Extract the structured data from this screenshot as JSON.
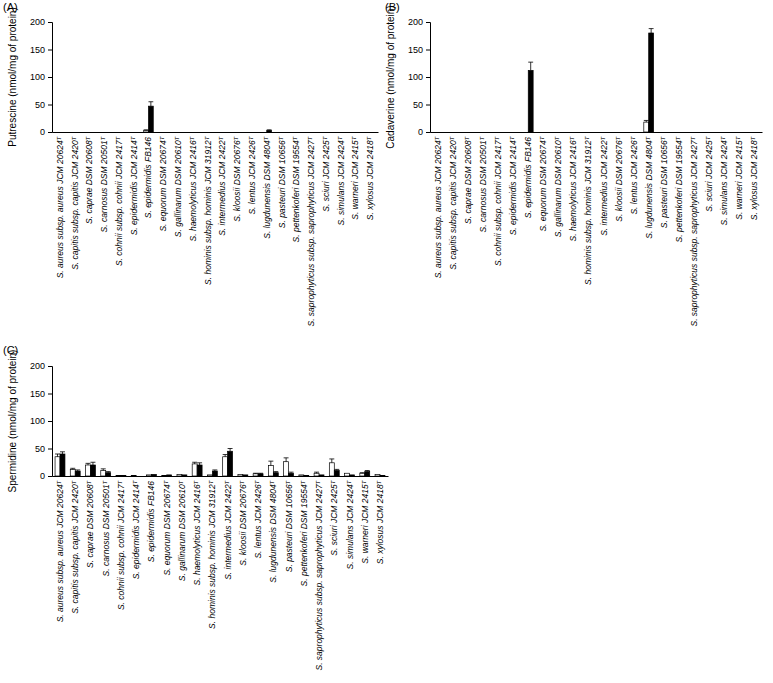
{
  "chart_data": [
    {
      "type": "bar",
      "title": "(A)",
      "y_label": "Putrescine (nmol/mg of protein)",
      "categories": [
        "S. aureus subsp. aureus JCM 20624ᵀ",
        "S. capitis subsp. capitis JCM 2420ᵀ",
        "S. caprae DSM 20608ᵀ",
        "S. carnosus DSM 20501ᵀ",
        "S. cohnii subsp. cohnii JCM 2417ᵀ",
        "S. epidermidis JCM 2414ᵀ",
        "S. epidermidis FB146",
        "S. equorum DSM 20674ᵀ",
        "S. gallinarum DSM 20610ᵀ",
        "S. haemolyticus JCM 2416ᵀ",
        "S. hominis subsp. hominis JCM 31912ᵀ",
        "S. intermedius JCM 2422ᵀ",
        "S. kloosii DSM 20676ᵀ",
        "S. lentus JCM 2426ᵀ",
        "S. lugdunensis DSM 4804ᵀ",
        "S. pasteuri DSM 10656ᵀ",
        "S. pettenkoferi DSM 19554ᵀ",
        "S. saprophyticus subsp. saprophyticus JCM 2427ᵀ",
        "S. sciuri JCM 2425ᵀ",
        "S. simulans JCM 2424ᵀ",
        "S. warneri JCM 2415ᵀ",
        "S. xylosus JCM 2418ᵀ"
      ],
      "series": [
        {
          "color": "#ffffff",
          "values": [
            0,
            0,
            0,
            0,
            0,
            0,
            3,
            0,
            0,
            0,
            0,
            0,
            0,
            0,
            0,
            0,
            0,
            0,
            0,
            0,
            0,
            0
          ],
          "errors": [
            0,
            0,
            0,
            0,
            0,
            0,
            1,
            0,
            0,
            0,
            0,
            0,
            0,
            0,
            0,
            0,
            0,
            0,
            0,
            0,
            0,
            0
          ]
        },
        {
          "color": "#000000",
          "values": [
            0,
            0,
            0,
            0,
            0,
            0,
            47,
            0,
            0,
            0,
            0,
            0,
            0,
            0,
            3,
            0,
            0,
            0,
            0,
            0,
            0,
            0
          ],
          "errors": [
            0,
            0,
            0,
            0,
            0,
            0,
            8,
            0,
            0,
            0,
            0,
            0,
            0,
            0,
            1,
            0,
            0,
            0,
            0,
            0,
            0,
            0
          ]
        }
      ],
      "ylim": [
        0,
        200
      ],
      "yticks": [
        0,
        50,
        100,
        150,
        200
      ]
    },
    {
      "type": "bar",
      "title": "(B)",
      "y_label": "Cadaverine (nmol/mg of protein)",
      "categories": [
        "S. aureus subsp. aureus JCM 20624ᵀ",
        "S. capitis subsp. capitis JCM 2420ᵀ",
        "S. caprae DSM 20608ᵀ",
        "S. carnosus DSM 20501ᵀ",
        "S. cohnii subsp. cohnii JCM 2417ᵀ",
        "S. epidermidis JCM 2414ᵀ",
        "S. epidermidis FB146",
        "S. equorum DSM 20674ᵀ",
        "S. gallinarum DSM 20610ᵀ",
        "S. haemolyticus JCM 2416ᵀ",
        "S. hominis subsp. hominis JCM 31912ᵀ",
        "S. intermedius JCM 2422ᵀ",
        "S. kloosii DSM 20676ᵀ",
        "S. lentus JCM 2426ᵀ",
        "S. lugdunensis DSM 4804ᵀ",
        "S. pasteuri DSM 10656ᵀ",
        "S. pettenkoferi DSM 19554ᵀ",
        "S. saprophyticus subsp. saprophyticus JCM 2427ᵀ",
        "S. sciuri JCM 2425ᵀ",
        "S. simulans JCM 2424ᵀ",
        "S. warneri JCM 2415ᵀ",
        "S. xylosus JCM 2418ᵀ"
      ],
      "series": [
        {
          "color": "#ffffff",
          "values": [
            0,
            0,
            0,
            0,
            0,
            0,
            0,
            0,
            0,
            0,
            0,
            0,
            0,
            0,
            18,
            0,
            0,
            0,
            0,
            0,
            0,
            0
          ],
          "errors": [
            0,
            0,
            0,
            0,
            0,
            0,
            0,
            0,
            0,
            0,
            0,
            0,
            0,
            0,
            3,
            0,
            0,
            0,
            0,
            0,
            0,
            0
          ]
        },
        {
          "color": "#000000",
          "values": [
            0,
            0,
            0,
            0,
            0,
            0,
            112,
            0,
            0,
            0,
            0,
            0,
            0,
            0,
            180,
            0,
            0,
            0,
            0,
            0,
            0,
            0
          ],
          "errors": [
            0,
            0,
            0,
            0,
            0,
            0,
            15,
            0,
            0,
            0,
            0,
            0,
            0,
            0,
            8,
            0,
            0,
            0,
            0,
            0,
            0,
            0
          ]
        }
      ],
      "ylim": [
        0,
        200
      ],
      "yticks": [
        0,
        50,
        100,
        150,
        200
      ]
    },
    {
      "type": "bar",
      "title": "(C)",
      "y_label": "Spermidine (nmol/mg of protein)",
      "categories": [
        "S. aureus subsp. aureus JCM 20624ᵀ",
        "S. capitis subsp. capitis JCM 2420ᵀ",
        "S. caprae DSM 20608ᵀ",
        "S. carnosus DSM 20501ᵀ",
        "S. cohnii subsp. cohnii JCM 2417ᵀ",
        "S. epidermidis JCM 2414ᵀ",
        "S. epidermidis FB146",
        "S. equorum DSM 20674ᵀ",
        "S. gallinarum DSM 20610ᵀ",
        "S. haemolyticus JCM 2416ᵀ",
        "S. hominis subsp. hominis JCM 31912ᵀ",
        "S. intermedius JCM 2422ᵀ",
        "S. kloosii DSM 20676ᵀ",
        "S. lentus JCM 2426ᵀ",
        "S. lugdunensis DSM 4804ᵀ",
        "S. pasteuri DSM 10656ᵀ",
        "S. pettenkoferi DSM 19554ᵀ",
        "S. saprophyticus subsp. saprophyticus JCM 2427ᵀ",
        "S. sciuri JCM 2425ᵀ",
        "S. simulans JCM 2424ᵀ",
        "S. warneri JCM 2415ᵀ",
        "S. xylosus JCM 2418ᵀ"
      ],
      "series": [
        {
          "color": "#ffffff",
          "values": [
            35,
            12,
            20,
            10,
            1,
            1,
            2,
            1,
            3,
            22,
            2,
            35,
            3,
            4,
            19,
            26,
            2,
            5,
            24,
            5,
            5,
            3
          ],
          "errors": [
            5,
            2,
            3,
            3,
            0,
            0,
            0,
            0,
            0,
            3,
            0,
            4,
            0,
            1,
            8,
            7,
            0,
            2,
            7,
            0,
            1,
            0
          ]
        },
        {
          "color": "#000000",
          "values": [
            40,
            9,
            20,
            6,
            1,
            0,
            3,
            2,
            2,
            20,
            9,
            45,
            2,
            4,
            6,
            5,
            1,
            2,
            10,
            2,
            8,
            1
          ],
          "errors": [
            4,
            2,
            5,
            2,
            0,
            0,
            0,
            0,
            0,
            4,
            2,
            5,
            0,
            1,
            2,
            2,
            0,
            0,
            2,
            0,
            2,
            0
          ]
        }
      ],
      "ylim": [
        0,
        200
      ],
      "yticks": [
        0,
        50,
        100,
        150,
        200
      ]
    }
  ]
}
